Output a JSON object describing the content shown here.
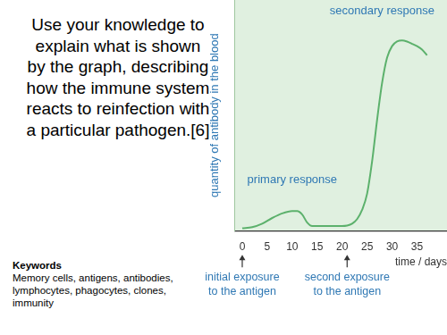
{
  "slide": {
    "question": "Use your knowledge to explain what is shown by the graph, describing how the immune system reacts to reinfection with a particular pathogen.",
    "marks": "[6]",
    "keywords": {
      "title": "Keywords",
      "text": "Memory cells, antigens, antibodies, lymphocytes, phagocytes, clones, immunity"
    }
  },
  "chart_data": {
    "type": "line",
    "y_label": "quantity of antibody in the blood",
    "x_label": "time / days",
    "x": [
      0,
      2,
      4,
      6,
      8,
      10,
      11,
      12,
      13,
      14,
      17,
      20,
      21,
      22,
      23,
      24,
      25,
      26,
      27,
      28,
      29,
      30,
      31,
      32,
      33,
      34,
      35,
      36,
      37
    ],
    "values": [
      1,
      1.5,
      3,
      5.5,
      7.5,
      8.5,
      8.5,
      7,
      3.5,
      2,
      2,
      2,
      2.2,
      3,
      5,
      9,
      16,
      30,
      48,
      64,
      75,
      80,
      82,
      82.5,
      82,
      81,
      80,
      78.5,
      76
    ],
    "color": "#5cb16c",
    "xlim": [
      -1.5,
      41
    ],
    "xticks": [
      0,
      5,
      10,
      15,
      20,
      25,
      30,
      35
    ],
    "ylim": [
      0,
      100
    ],
    "grid": false,
    "tick_labels": "x",
    "annotations": [
      {
        "text": "primary response",
        "x": 10,
        "y": 22
      },
      {
        "text": "secondary response",
        "x": 28,
        "y": 95
      }
    ],
    "axis_annotations": [
      {
        "x": 0,
        "text": [
          "initial exposure",
          "to the antigen"
        ]
      },
      {
        "x": 21,
        "text": [
          "second exposure",
          "to the antigen"
        ]
      }
    ]
  }
}
